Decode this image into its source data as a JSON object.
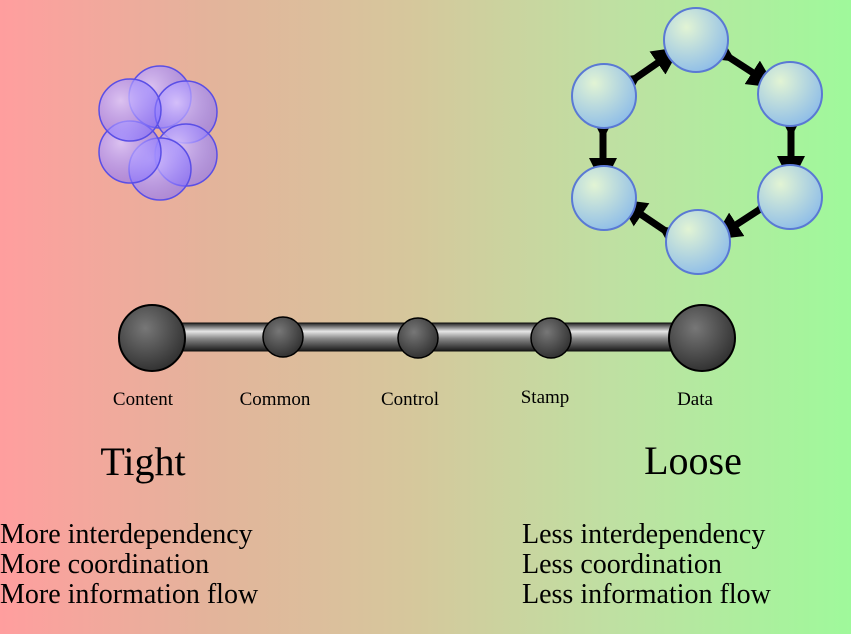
{
  "scale": {
    "points": [
      {
        "label": "Content"
      },
      {
        "label": "Common"
      },
      {
        "label": "Control"
      },
      {
        "label": "Stamp"
      },
      {
        "label": "Data"
      }
    ]
  },
  "tight": {
    "title": "Tight",
    "lines": [
      "More interdependency",
      "More coordination",
      "More information flow"
    ]
  },
  "loose": {
    "title": "Loose",
    "lines": [
      "Less interdependency",
      "Less coordination",
      "Less information flow"
    ]
  },
  "colors": {
    "left_bg": "#ff9e9e",
    "right_bg": "#9ff99b",
    "tight_modules": "#8f7fe6",
    "loose_modules": "#a9d3de"
  }
}
